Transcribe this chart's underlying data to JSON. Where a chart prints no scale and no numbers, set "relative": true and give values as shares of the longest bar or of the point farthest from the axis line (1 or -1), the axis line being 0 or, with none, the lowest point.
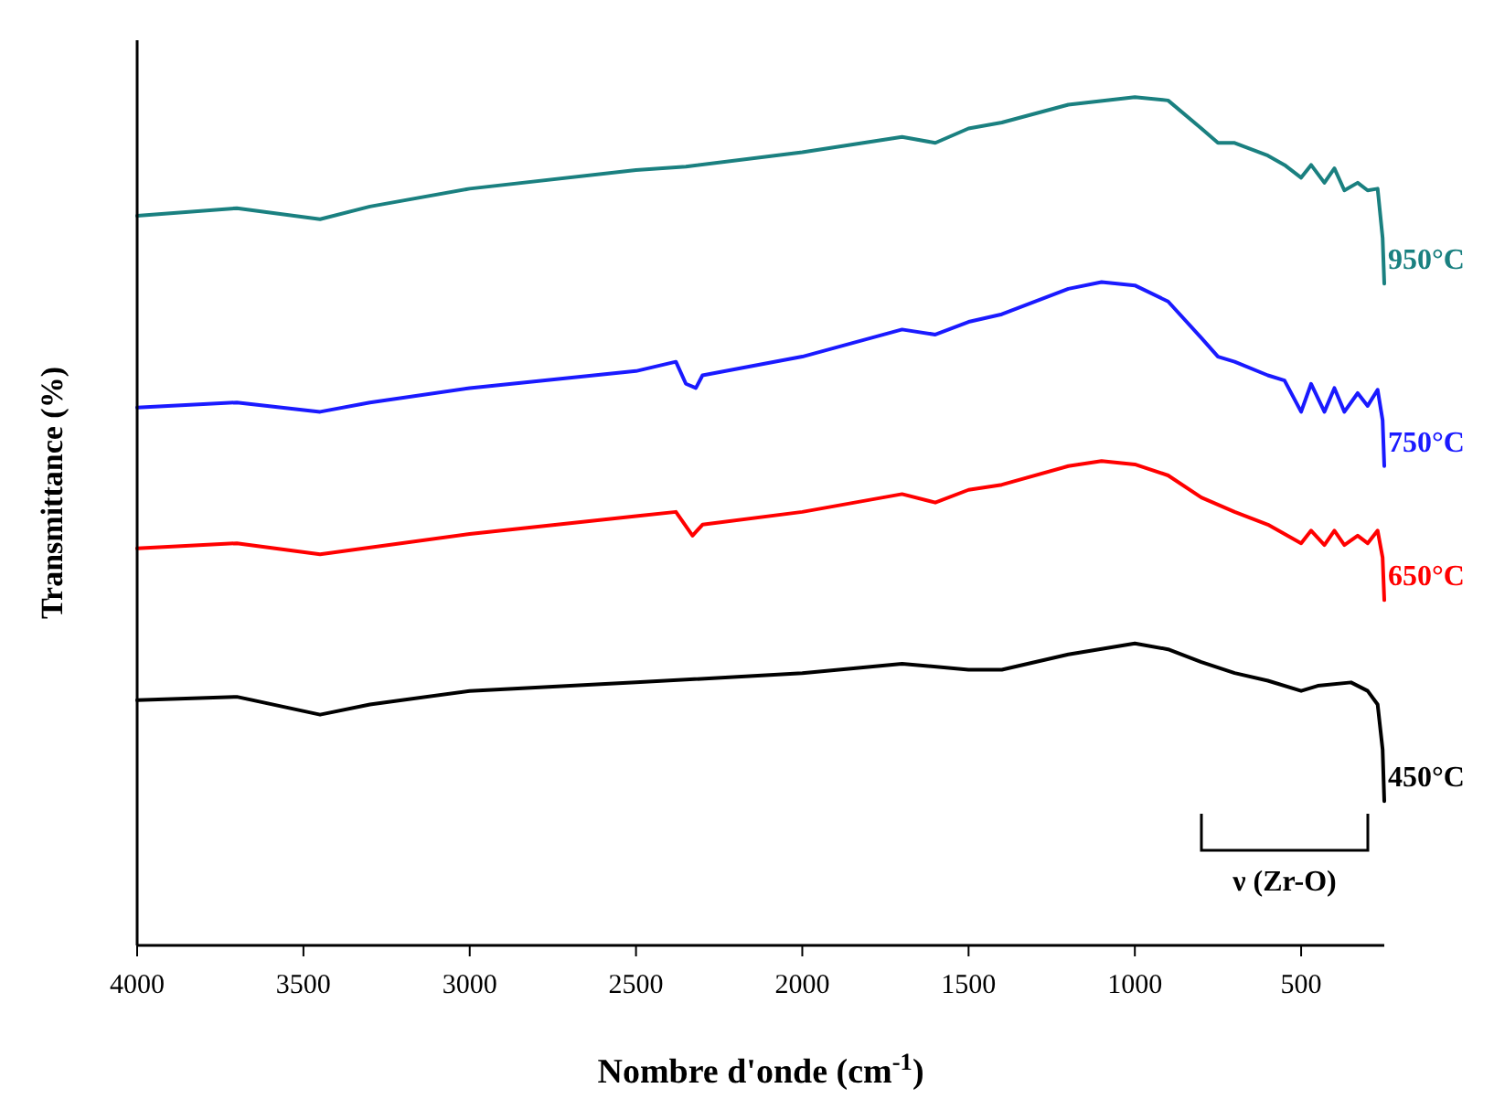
{
  "chart_data": {
    "type": "line",
    "relative": true,
    "xlabel": "Nombre d'onde (cm$^{-1}$)",
    "ylabel": "Transmittance (%)",
    "xlim": [
      4000,
      250
    ],
    "xticks": [
      4000,
      3500,
      3000,
      2500,
      2000,
      1500,
      1000,
      500
    ],
    "tick_labels": "x",
    "marker": "none",
    "line_style": "solid",
    "annotations": [
      "ν (Zr-O)"
    ],
    "series": [
      {
        "name": "950°C",
        "color": "#1a8080",
        "x": [
          4000,
          3700,
          3450,
          3300,
          3000,
          2500,
          2350,
          2000,
          1700,
          1600,
          1500,
          1400,
          1200,
          1000,
          900,
          800,
          750,
          700,
          600,
          550,
          500,
          470,
          430,
          400,
          370,
          330,
          300,
          270,
          255,
          250
        ],
        "values": [
          0.86,
          0.869,
          0.856,
          0.871,
          0.892,
          0.914,
          0.918,
          0.935,
          0.953,
          0.946,
          0.963,
          0.97,
          0.991,
          1.0,
          0.996,
          0.963,
          0.946,
          0.946,
          0.931,
          0.92,
          0.905,
          0.92,
          0.899,
          0.916,
          0.89,
          0.899,
          0.89,
          0.892,
          0.834,
          0.78
        ]
      },
      {
        "name": "750°C",
        "color": "#1a1aff",
        "x": [
          4000,
          3700,
          3450,
          3300,
          3000,
          2500,
          2380,
          2350,
          2320,
          2300,
          2000,
          1700,
          1600,
          1500,
          1400,
          1200,
          1100,
          1000,
          900,
          800,
          750,
          700,
          600,
          550,
          500,
          470,
          430,
          400,
          370,
          330,
          300,
          270,
          255,
          250
        ],
        "values": [
          0.634,
          0.64,
          0.629,
          0.64,
          0.657,
          0.677,
          0.688,
          0.662,
          0.657,
          0.672,
          0.694,
          0.726,
          0.72,
          0.735,
          0.744,
          0.774,
          0.782,
          0.778,
          0.759,
          0.716,
          0.694,
          0.688,
          0.672,
          0.666,
          0.629,
          0.662,
          0.629,
          0.657,
          0.629,
          0.651,
          0.636,
          0.655,
          0.619,
          0.565
        ]
      },
      {
        "name": "650°C",
        "color": "#ff0000",
        "x": [
          4000,
          3700,
          3450,
          3000,
          2500,
          2380,
          2330,
          2300,
          2000,
          1700,
          1600,
          1500,
          1400,
          1200,
          1100,
          1000,
          900,
          800,
          700,
          600,
          500,
          470,
          430,
          400,
          370,
          330,
          300,
          270,
          255,
          250
        ],
        "values": [
          0.468,
          0.474,
          0.461,
          0.485,
          0.506,
          0.511,
          0.483,
          0.496,
          0.511,
          0.532,
          0.522,
          0.537,
          0.543,
          0.565,
          0.571,
          0.567,
          0.554,
          0.528,
          0.511,
          0.496,
          0.474,
          0.489,
          0.472,
          0.489,
          0.472,
          0.483,
          0.474,
          0.489,
          0.457,
          0.407
        ]
      },
      {
        "name": "450°C",
        "color": "#000000",
        "x": [
          4000,
          3700,
          3450,
          3300,
          3000,
          2500,
          2000,
          1700,
          1500,
          1400,
          1200,
          1000,
          900,
          800,
          700,
          600,
          500,
          450,
          350,
          300,
          270,
          255,
          250
        ],
        "values": [
          0.289,
          0.293,
          0.272,
          0.284,
          0.3,
          0.31,
          0.321,
          0.332,
          0.325,
          0.325,
          0.343,
          0.356,
          0.349,
          0.334,
          0.321,
          0.312,
          0.3,
          0.306,
          0.31,
          0.3,
          0.284,
          0.231,
          0.17
        ]
      }
    ]
  }
}
